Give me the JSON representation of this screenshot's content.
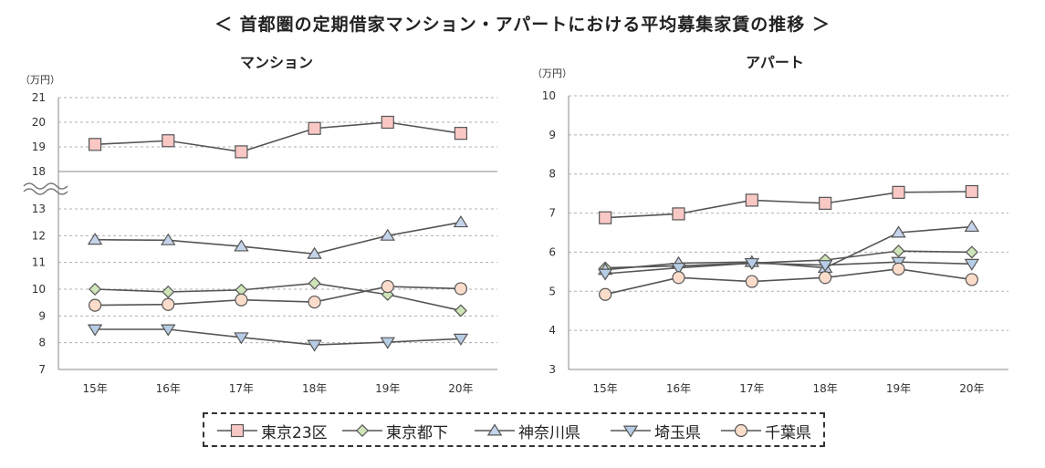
{
  "title": "＜ 首都圏の定期借家マンション・アパートにおける平均募集家賃の推移 ＞",
  "unit_label": "（万円）",
  "legend": [
    {
      "name": "東京23区",
      "marker": "square",
      "fill": "#f9c8c5"
    },
    {
      "name": "東京都下",
      "marker": "diamond",
      "fill": "#cfe5b8"
    },
    {
      "name": "神奈川県",
      "marker": "triangle-up",
      "fill": "#c5d4ea"
    },
    {
      "name": "埼玉県",
      "marker": "triangle-down",
      "fill": "#b7cde6"
    },
    {
      "name": "千葉県",
      "marker": "circle",
      "fill": "#fbdccb"
    }
  ],
  "colors": {
    "line": "#555555",
    "marker_stroke": "#555555",
    "grid": "#b0b0b0",
    "axis": "#888888"
  },
  "chart_data": [
    {
      "type": "line",
      "title": "マンション",
      "categories": [
        "15年",
        "16年",
        "17年",
        "18年",
        "19年",
        "20年"
      ],
      "ylabel": "（万円）",
      "broken_axis": true,
      "upper_panel": {
        "ylim": [
          18,
          21
        ],
        "yticks": [
          "18",
          "19",
          "20",
          "21"
        ]
      },
      "lower_panel": {
        "ylim": [
          7,
          13
        ],
        "yticks": [
          "7",
          "8",
          "9",
          "10",
          "11",
          "12",
          "13"
        ]
      },
      "grid": true,
      "series": [
        {
          "name": "東京23区",
          "values": [
            19.1,
            19.25,
            18.8,
            19.75,
            20.0,
            19.55
          ]
        },
        {
          "name": "東京都下",
          "values": [
            10.0,
            9.9,
            9.97,
            10.22,
            9.8,
            9.2
          ]
        },
        {
          "name": "神奈川県",
          "values": [
            11.85,
            11.83,
            11.6,
            11.32,
            12.0,
            12.5
          ]
        },
        {
          "name": "埼玉県",
          "values": [
            8.5,
            8.5,
            8.2,
            7.92,
            8.02,
            8.15
          ]
        },
        {
          "name": "千葉県",
          "values": [
            9.4,
            9.43,
            9.6,
            9.52,
            10.1,
            10.02
          ]
        }
      ]
    },
    {
      "type": "line",
      "title": "アパート",
      "categories": [
        "15年",
        "16年",
        "17年",
        "18年",
        "19年",
        "20年"
      ],
      "ylabel": "（万円）",
      "ylim": [
        3,
        10
      ],
      "yticks": [
        "3",
        "4",
        "5",
        "6",
        "7",
        "8",
        "9",
        "10"
      ],
      "grid": true,
      "series": [
        {
          "name": "東京23区",
          "values": [
            6.88,
            6.98,
            7.33,
            7.25,
            7.53,
            7.55
          ]
        },
        {
          "name": "東京都下",
          "values": [
            5.6,
            5.65,
            5.72,
            5.8,
            6.03,
            6.0
          ]
        },
        {
          "name": "神奈川県",
          "values": [
            5.55,
            5.72,
            5.75,
            5.6,
            6.5,
            6.65
          ]
        },
        {
          "name": "埼玉県",
          "values": [
            5.45,
            5.6,
            5.72,
            5.67,
            5.75,
            5.7
          ]
        },
        {
          "name": "千葉県",
          "values": [
            4.92,
            5.35,
            5.25,
            5.35,
            5.57,
            5.3
          ]
        }
      ]
    }
  ]
}
